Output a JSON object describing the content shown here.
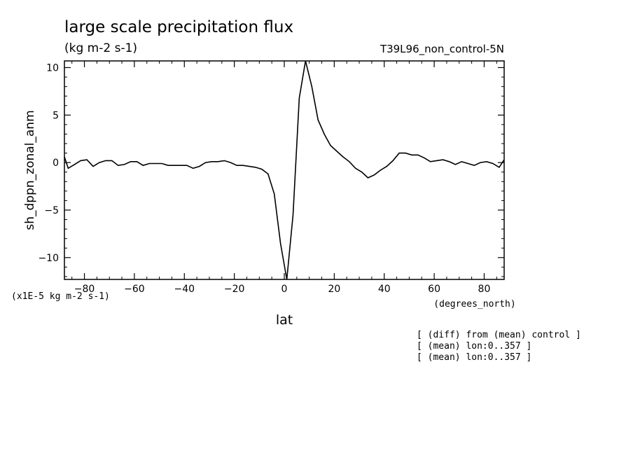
{
  "chart_data": {
    "type": "line",
    "title": "large scale precipitation flux",
    "units": "(kg m-2 s-1)",
    "run_label": "T39L96_non_control-5N",
    "ylabel": "sh_dppn_zonal_anm",
    "xlabel": "lat",
    "x_units": "(degrees_north)",
    "y_scale_note": "(x1E-5 kg m-2 s-1)",
    "notes": [
      "[ (diff) from (mean) control ]",
      "[ (mean) lon:0..357 ]",
      "[ (mean) lon:0..357 ]"
    ],
    "xlim": [
      -88,
      88
    ],
    "ylim": [
      -12.3,
      10.7
    ],
    "x_ticks": [
      -80,
      -60,
      -40,
      -20,
      0,
      20,
      40,
      60,
      80
    ],
    "y_ticks": [
      -10,
      -5,
      0,
      5,
      10
    ],
    "x_tick_labels": [
      "−80",
      "−60",
      "−40",
      "−20",
      "0",
      "20",
      "40",
      "60",
      "80"
    ],
    "y_tick_labels": [
      "−10",
      "−5",
      "0",
      "5",
      "10"
    ],
    "series": [
      {
        "x": [
          -88,
          -86.5,
          -84,
          -81.5,
          -79,
          -76.5,
          -74,
          -71.5,
          -69,
          -66.5,
          -64,
          -61.5,
          -59,
          -56.5,
          -54,
          -51.5,
          -49,
          -46.5,
          -44,
          -41.5,
          -39,
          -36.5,
          -34,
          -31.5,
          -29,
          -26.5,
          -24,
          -21.5,
          -19,
          -16.5,
          -14,
          -11.5,
          -9,
          -6.5,
          -4,
          -1.5,
          1,
          3.5,
          6,
          8.5,
          11,
          13.5,
          16,
          18.5,
          21,
          23.5,
          26,
          28.5,
          31,
          33.5,
          36,
          38.5,
          41,
          43.5,
          46,
          48.5,
          51,
          53.5,
          56,
          58.5,
          61,
          63.5,
          66,
          68.5,
          71,
          73.5,
          76,
          78.5,
          81,
          83.5,
          86,
          88
        ],
        "y": [
          0.6,
          -0.6,
          -0.2,
          0.2,
          0.3,
          -0.4,
          0.0,
          0.2,
          0.2,
          -0.3,
          -0.2,
          0.1,
          0.1,
          -0.3,
          -0.1,
          -0.1,
          -0.1,
          -0.3,
          -0.3,
          -0.3,
          -0.3,
          -0.6,
          -0.4,
          0.0,
          0.1,
          0.1,
          0.2,
          0.0,
          -0.3,
          -0.3,
          -0.4,
          -0.5,
          -0.7,
          -1.2,
          -3.3,
          -8.5,
          -12.3,
          -5.5,
          6.8,
          10.7,
          8.0,
          4.5,
          3.0,
          1.8,
          1.2,
          0.6,
          0.1,
          -0.6,
          -1.0,
          -1.6,
          -1.3,
          -0.8,
          -0.4,
          0.2,
          1.0,
          1.0,
          0.8,
          0.8,
          0.5,
          0.1,
          0.2,
          0.3,
          0.1,
          -0.2,
          0.1,
          -0.1,
          -0.3,
          0.0,
          0.1,
          -0.1,
          -0.5,
          0.3
        ]
      }
    ]
  },
  "colors": {
    "line": "#000000",
    "axes": "#000000",
    "background": "#ffffff"
  }
}
